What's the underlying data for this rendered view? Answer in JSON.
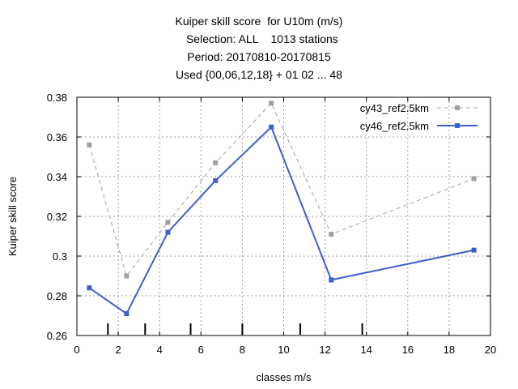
{
  "chart_data": {
    "type": "line",
    "title_lines": [
      "Kuiper skill score  for U10m (m/s)",
      "  Selection: ALL    1013 stations",
      "Period: 20170810-20170815",
      "Used {00,06,12,18} + 01 02 ... 48"
    ],
    "xlabel": "classes m/s",
    "ylabel": "Kuiper skill score",
    "xlim": [
      0,
      20
    ],
    "ylim": [
      0.26,
      0.38
    ],
    "xticks": [
      0,
      2,
      4,
      6,
      8,
      10,
      12,
      14,
      16,
      18,
      20
    ],
    "yticks": [
      0.26,
      0.28,
      0.3,
      0.32,
      0.34,
      0.36,
      0.38
    ],
    "xtick_labels": [
      "0",
      "2",
      "4",
      "6",
      "8",
      "10",
      "12",
      "14",
      "16",
      "18",
      "20"
    ],
    "ytick_labels": [
      "0.26",
      "0.28",
      "0.3",
      "0.32",
      "0.34",
      "0.36",
      "0.38"
    ],
    "grid": true,
    "legend_position": "top-right",
    "class_boundaries": [
      1.5,
      3.3,
      5.5,
      8.0,
      10.8,
      13.8
    ],
    "series": [
      {
        "name": "cy43_ref2.5km",
        "color": "#a0a0a0",
        "dashed": true,
        "x": [
          0.6,
          2.4,
          4.4,
          6.7,
          9.4,
          12.3,
          19.2
        ],
        "y": [
          0.356,
          0.29,
          0.317,
          0.347,
          0.377,
          0.311,
          0.339
        ]
      },
      {
        "name": "cy46_ref2.5km",
        "color": "#3c5fcd",
        "dashed": false,
        "x": [
          0.6,
          2.4,
          4.4,
          6.7,
          9.4,
          12.3,
          19.2
        ],
        "y": [
          0.284,
          0.271,
          0.312,
          0.338,
          0.365,
          0.288,
          0.303
        ]
      }
    ]
  }
}
